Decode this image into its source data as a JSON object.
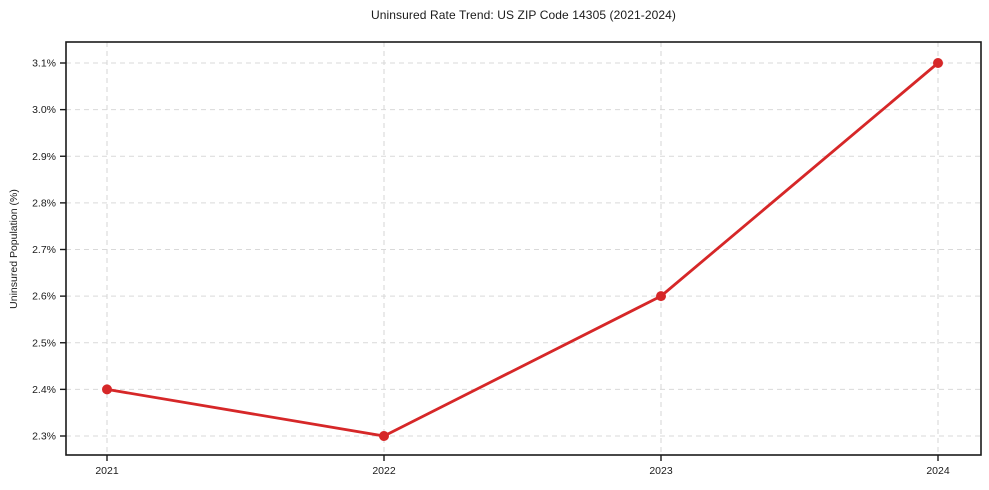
{
  "chart_data": {
    "type": "line",
    "title": "Uninsured Rate Trend: US ZIP Code 14305 (2021-2024)",
    "xlabel": "",
    "ylabel": "Uninsured Population (%)",
    "x": [
      2021,
      2022,
      2023,
      2024
    ],
    "x_tick_labels": [
      "2021",
      "2022",
      "2023",
      "2024"
    ],
    "series": [
      {
        "name": "Uninsured Rate",
        "values": [
          2.4,
          2.3,
          2.6,
          3.1
        ]
      }
    ],
    "y_ticks": [
      2.3,
      2.4,
      2.5,
      2.6,
      2.7,
      2.8,
      2.9,
      3.0,
      3.1
    ],
    "y_tick_labels": [
      "2.3%",
      "2.4%",
      "2.5%",
      "2.6%",
      "2.7%",
      "2.8%",
      "2.9%",
      "3.0%",
      "3.1%"
    ],
    "ylim": [
      2.26,
      3.15
    ],
    "grid": true,
    "legend": "none",
    "colors": {
      "line": "#d62728",
      "marker": "#d62728",
      "grid": "#d9d9d9",
      "axis_border": "#1a1a1a",
      "text": "#1a1a1a",
      "background": "#ffffff"
    }
  }
}
